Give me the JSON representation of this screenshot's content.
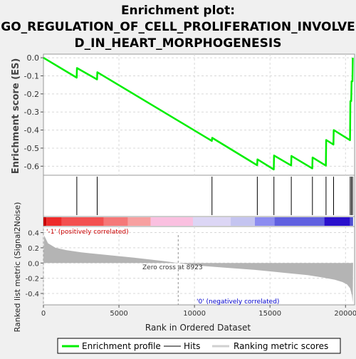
{
  "title_lines": [
    "Enrichment plot:",
    "GO_REGULATION_OF_CELL_PROLIFERATION_INVOLVE",
    "D_IN_HEART_MORPHOGENESIS"
  ],
  "colors": {
    "enrichment_line": "#00ee00",
    "hit_line": "#000000",
    "metric_fill": "#b4b4b4",
    "grid": "#d8d8d8",
    "positive_label": "#cc0000",
    "negative_label": "#0000cc",
    "zero_marker": "#909090"
  },
  "chart_data": [
    {
      "type": "line",
      "name": "enrichment-profile",
      "ylabel": "Enrichment score (ES)",
      "xlim": [
        0,
        20600
      ],
      "ylim": [
        -0.65,
        0.02
      ],
      "yticks": [
        0.0,
        -0.1,
        -0.2,
        -0.3,
        -0.4,
        -0.5,
        -0.6
      ],
      "ytick_labels": [
        "0.0",
        "-0.1",
        "-0.2",
        "-0.3",
        "-0.4",
        "-0.5",
        "-0.6"
      ],
      "grid": true,
      "x": [
        0,
        2200,
        2220,
        3550,
        3570,
        11150,
        11170,
        14150,
        14170,
        15250,
        15270,
        16400,
        16420,
        17800,
        17820,
        18700,
        18720,
        19200,
        19220,
        20300,
        20320,
        20380,
        20400,
        20460,
        20480
      ],
      "y": [
        0.0,
        -0.11,
        -0.057,
        -0.12,
        -0.08,
        -0.46,
        -0.443,
        -0.595,
        -0.562,
        -0.618,
        -0.541,
        -0.596,
        -0.543,
        -0.612,
        -0.552,
        -0.597,
        -0.455,
        -0.48,
        -0.4,
        -0.456,
        -0.24,
        -0.24,
        -0.13,
        -0.13,
        0.0
      ]
    },
    {
      "type": "hits",
      "name": "hits",
      "x": [
        2210,
        3560,
        11160,
        14160,
        15260,
        16410,
        17810,
        18710,
        19210,
        20310,
        20390,
        20470
      ]
    },
    {
      "type": "heatmap",
      "name": "ranking-colorbar",
      "segments": [
        {
          "from": 0,
          "to": 200,
          "color": "#c80000"
        },
        {
          "from": 200,
          "to": 1200,
          "color": "#ee2a2a"
        },
        {
          "from": 1200,
          "to": 4000,
          "color": "#f35050"
        },
        {
          "from": 4000,
          "to": 5600,
          "color": "#f57878"
        },
        {
          "from": 5600,
          "to": 7100,
          "color": "#f7a0a0"
        },
        {
          "from": 7100,
          "to": 9900,
          "color": "#fac0e0"
        },
        {
          "from": 9900,
          "to": 12400,
          "color": "#dcd6f5"
        },
        {
          "from": 12400,
          "to": 14000,
          "color": "#c4c4f0"
        },
        {
          "from": 14000,
          "to": 15300,
          "color": "#8c8cf0"
        },
        {
          "from": 15300,
          "to": 18600,
          "color": "#6060e0"
        },
        {
          "from": 18600,
          "to": 20300,
          "color": "#2a10cc"
        },
        {
          "from": 20300,
          "to": 20500,
          "color": "#5050d0"
        }
      ]
    },
    {
      "type": "area",
      "name": "ranked-list-metric",
      "xlabel": "Rank in Ordered Dataset",
      "ylabel": "Ranked list metric (Signal2Noise)",
      "xlim": [
        0,
        20600
      ],
      "ylim": [
        -0.55,
        0.48
      ],
      "xticks": [
        0,
        5000,
        10000,
        15000,
        20000
      ],
      "xtick_labels": [
        "0",
        "5000",
        "10000",
        "15000",
        "20000"
      ],
      "yticks": [
        0.4,
        0.2,
        0.0,
        -0.2,
        -0.4
      ],
      "ytick_labels": [
        "0.4",
        "0.2",
        "0.0",
        "-0.2",
        "-0.4"
      ],
      "grid": true,
      "x": [
        0,
        50,
        300,
        800,
        1500,
        2500,
        4000,
        6000,
        8000,
        8923,
        10000,
        12000,
        14000,
        16000,
        17500,
        18500,
        19300,
        19800,
        20100,
        20300,
        20420,
        20480,
        20500
      ],
      "y": [
        0.0,
        0.36,
        0.26,
        0.2,
        0.17,
        0.14,
        0.11,
        0.07,
        0.025,
        0.0,
        -0.03,
        -0.06,
        -0.09,
        -0.13,
        -0.16,
        -0.19,
        -0.22,
        -0.25,
        -0.28,
        -0.33,
        -0.42,
        -0.52,
        0.0
      ],
      "zero_cross": 8923,
      "annotations": {
        "positive": "'-1' (positively correlated)",
        "negative": "'0' (negatively correlated)",
        "zero_cross": "Zero cross at 8923"
      }
    }
  ],
  "legend": {
    "items": [
      {
        "label": "Enrichment profile",
        "color": "#00ee00"
      },
      {
        "label": "Hits",
        "color": "#808080"
      },
      {
        "label": "Ranking metric scores",
        "color": "#d0d0d0"
      }
    ]
  }
}
